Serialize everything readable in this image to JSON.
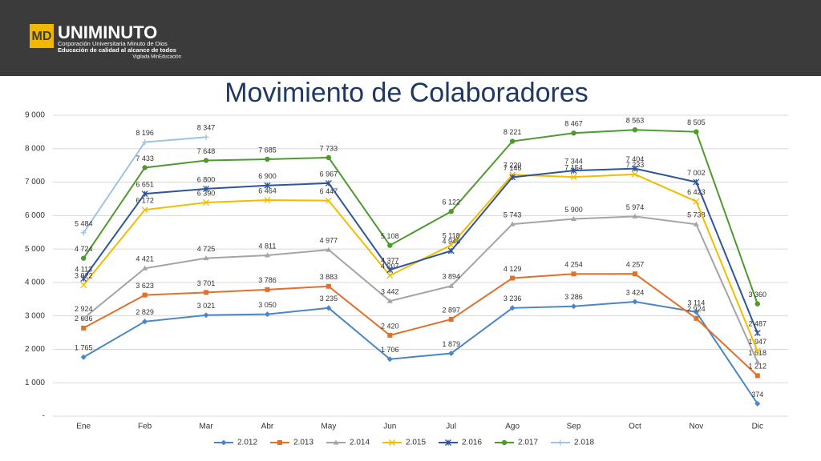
{
  "logo": {
    "initials": "MD",
    "name": "UNIMINUTO",
    "lines": [
      "Corporación Universitaria Minuto de Dios",
      "Educación de calidad al alcance de todos",
      "Vigilada MinEducación"
    ]
  },
  "chart_data": {
    "type": "line",
    "title": "Movimiento de Colaboradores",
    "categories": [
      "Ene",
      "Feb",
      "Mar",
      "Abr",
      "May",
      "Jun",
      "Jul",
      "Ago",
      "Sep",
      "Oct",
      "Nov",
      "Dic"
    ],
    "ylim": [
      0,
      9000
    ],
    "yticks": [
      {
        "value": 0,
        "label": "-"
      },
      {
        "value": 1000,
        "label": "1 000"
      },
      {
        "value": 2000,
        "label": "2 000"
      },
      {
        "value": 3000,
        "label": "3 000"
      },
      {
        "value": 4000,
        "label": "4 000"
      },
      {
        "value": 5000,
        "label": "5 000"
      },
      {
        "value": 6000,
        "label": "6 000"
      },
      {
        "value": 7000,
        "label": "7 000"
      },
      {
        "value": 8000,
        "label": "8 000"
      },
      {
        "value": 9000,
        "label": "9 000"
      }
    ],
    "grid": true,
    "legend": "bottom",
    "series": [
      {
        "name": "2.012",
        "color": "#4a86c5",
        "marker": "diamond",
        "values": [
          1765,
          2829,
          3021,
          3050,
          3235,
          1706,
          1879,
          3236,
          3286,
          3424,
          3114,
          374
        ],
        "value_labels": [
          "1 765",
          "2 829",
          "3 021",
          "3 050",
          "3 235",
          "1 706",
          "1 879",
          "3 236",
          "3 286",
          "3 424",
          "3 114",
          "374"
        ]
      },
      {
        "name": "2.013",
        "color": "#e0702a",
        "marker": "square",
        "values": [
          2636,
          3623,
          3701,
          3786,
          3883,
          2420,
          2897,
          4129,
          4254,
          4257,
          2924,
          1212
        ],
        "value_labels": [
          "2 636",
          "3 623",
          "3 701",
          "3 786",
          "3 883",
          "2 420",
          "2 897",
          "4 129",
          "4 254",
          "4 257",
          "2 924",
          "1 212"
        ]
      },
      {
        "name": "2.014",
        "color": "#a5a5a5",
        "marker": "triangle",
        "values": [
          2924,
          4421,
          4725,
          4811,
          4977,
          3442,
          3894,
          5743,
          5900,
          5974,
          5738,
          1618
        ],
        "value_labels": [
          "2 924",
          "4 421",
          "4 725",
          "4 811",
          "4 977",
          "3 442",
          "3 894",
          "5 743",
          "5 900",
          "5 974",
          "5 738",
          "1 618"
        ]
      },
      {
        "name": "2.015",
        "color": "#f2bd00",
        "marker": "x",
        "values": [
          3922,
          6172,
          6390,
          6464,
          6447,
          4207,
          5118,
          7220,
          7154,
          7233,
          6423,
          1947
        ],
        "value_labels": [
          "3 922",
          "6 172",
          "6 390",
          "6 464",
          "6 447",
          "4 207",
          "5 118",
          "7 220",
          "7 154",
          "7 233",
          "6 423",
          "1 947"
        ]
      },
      {
        "name": "2.016",
        "color": "#2f5597",
        "marker": "star",
        "values": [
          4113,
          6651,
          6800,
          6900,
          6967,
          4377,
          4946,
          7146,
          7344,
          7404,
          7002,
          2487
        ],
        "value_labels": [
          "4 113",
          "6 651",
          "6 800",
          "6 900",
          "6 967",
          "4 377",
          "4 946",
          "7 146",
          "7 344",
          "7 404",
          "7 002",
          "2 487"
        ]
      },
      {
        "name": "2.017",
        "color": "#4e9a2f",
        "marker": "circle",
        "values": [
          4724,
          7433,
          7648,
          7685,
          7733,
          5108,
          6122,
          8221,
          8467,
          8563,
          8505,
          3360
        ],
        "value_labels": [
          "4 724",
          "7 433",
          "7 648",
          "7 685",
          "7 733",
          "5 108",
          "6 122",
          "8 221",
          "8 467",
          "8 563",
          "8 505",
          "3 360"
        ]
      },
      {
        "name": "2.018",
        "color": "#9dc3e6",
        "marker": "plus",
        "values": [
          5484,
          8196,
          8347,
          null,
          null,
          null,
          null,
          null,
          null,
          null,
          null,
          null
        ],
        "value_labels": [
          "5 484",
          "8 196",
          "8 347",
          null,
          null,
          null,
          null,
          null,
          null,
          null,
          null,
          null
        ]
      }
    ]
  }
}
